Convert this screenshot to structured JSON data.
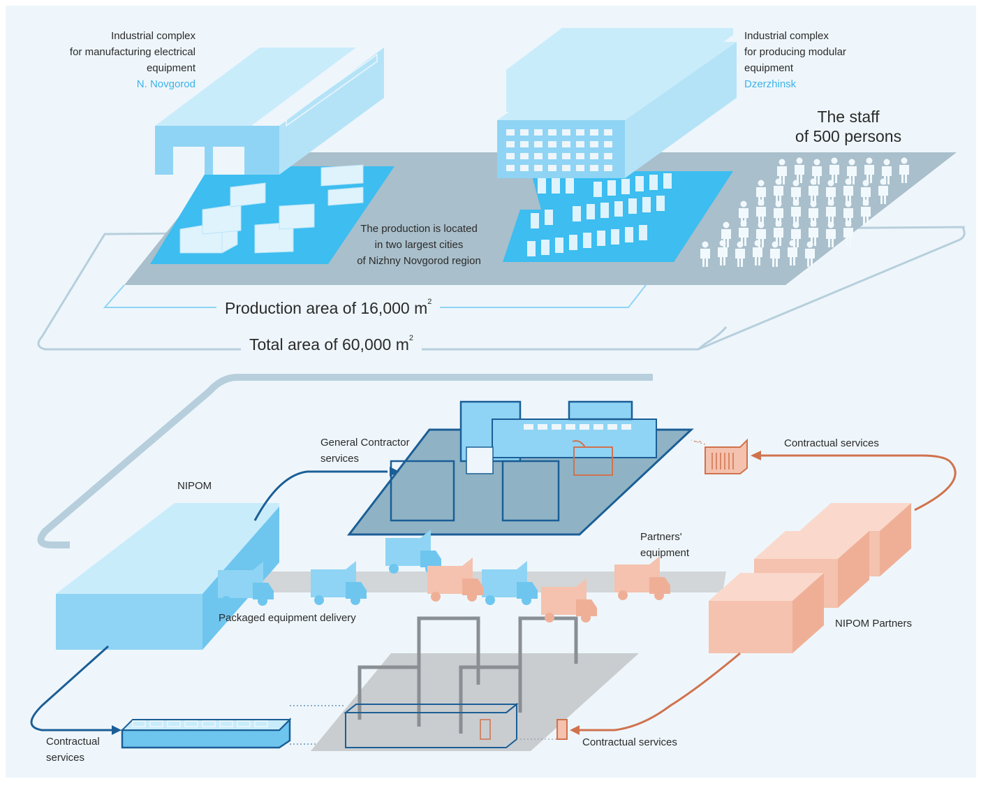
{
  "top": {
    "complex1": {
      "lines": [
        "Industrial complex",
        "for manufacturing electrical",
        "equipment"
      ],
      "city": "N. Novgorod"
    },
    "complex2": {
      "lines": [
        "Industrial complex",
        "for producing modular",
        "equipment"
      ],
      "city": "Dzerzhinsk"
    },
    "staff": {
      "lines": [
        "The staff",
        "of 500 persons"
      ]
    },
    "production_location": {
      "lines": [
        "The production is located",
        "in two largest cities",
        "of Nizhny Novgorod region"
      ]
    },
    "production_area": {
      "text": "Production area of 16,000 m",
      "sup": "2"
    },
    "total_area": {
      "text": "Total area of 60,000 m",
      "sup": "2"
    }
  },
  "bottom": {
    "nipom": "NIPOM",
    "general_contractor": {
      "lines": [
        "General Contractor",
        "services"
      ]
    },
    "contractual_services_top": "Contractual services",
    "partners_equipment": {
      "lines": [
        "Partners'",
        "equipment"
      ]
    },
    "packaged_delivery": "Packaged equipment delivery",
    "nipom_partners": "NIPOM Partners",
    "contractual_services_left": {
      "lines": [
        "Contractual",
        "services"
      ]
    },
    "contractual_services_bottom": "Contractual services"
  },
  "colors": {
    "background": "#eef6fb",
    "nipom_blue": "#8fd4f4",
    "dark_blue": "#1b5e96",
    "partner_orange": "#f4c2ae",
    "orange_line": "#d0724e",
    "grey_plane": "#a9bfcb",
    "accent_city": "#3bb3e8"
  }
}
